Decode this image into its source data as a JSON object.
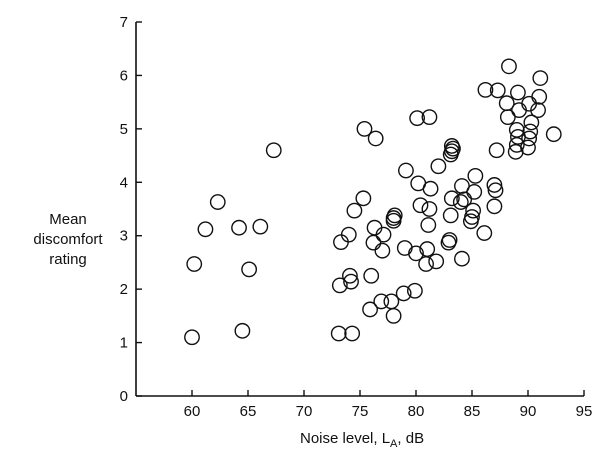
{
  "chart_data": {
    "type": "scatter",
    "title": "",
    "ylabel_lines": [
      "Mean",
      "discomfort",
      "rating"
    ],
    "xlabel": {
      "prefix": "Noise level, L",
      "subscript": "A",
      "suffix": ", dB"
    },
    "xlim": [
      55,
      95
    ],
    "ylim": [
      0,
      7
    ],
    "xticks": [
      60,
      65,
      70,
      75,
      80,
      85,
      90,
      95
    ],
    "yticks": [
      0,
      1,
      2,
      3,
      4,
      5,
      6,
      7
    ],
    "grid": false,
    "legend": "none",
    "marker": "open-circle",
    "points": [
      [
        60.0,
        1.1
      ],
      [
        60.2,
        2.47
      ],
      [
        61.2,
        3.12
      ],
      [
        62.3,
        3.63
      ],
      [
        64.2,
        3.15
      ],
      [
        64.5,
        1.22
      ],
      [
        65.1,
        2.37
      ],
      [
        66.1,
        3.17
      ],
      [
        67.3,
        4.6
      ],
      [
        73.1,
        1.17
      ],
      [
        73.2,
        2.07
      ],
      [
        73.3,
        2.88
      ],
      [
        74.0,
        3.02
      ],
      [
        74.1,
        2.25
      ],
      [
        74.2,
        2.14
      ],
      [
        74.3,
        1.17
      ],
      [
        74.5,
        3.47
      ],
      [
        75.3,
        3.7
      ],
      [
        75.4,
        5.0
      ],
      [
        75.9,
        1.62
      ],
      [
        76.0,
        2.25
      ],
      [
        76.2,
        2.87
      ],
      [
        76.3,
        3.15
      ],
      [
        76.4,
        4.82
      ],
      [
        76.9,
        1.77
      ],
      [
        77.0,
        2.72
      ],
      [
        77.1,
        3.02
      ],
      [
        77.8,
        1.77
      ],
      [
        78.0,
        1.5
      ],
      [
        78.0,
        3.28
      ],
      [
        78.0,
        3.33
      ],
      [
        78.1,
        3.38
      ],
      [
        78.9,
        1.92
      ],
      [
        79.0,
        2.77
      ],
      [
        79.1,
        4.22
      ],
      [
        79.9,
        1.97
      ],
      [
        80.0,
        2.67
      ],
      [
        80.1,
        5.2
      ],
      [
        80.2,
        3.98
      ],
      [
        80.4,
        3.57
      ],
      [
        80.9,
        2.47
      ],
      [
        81.0,
        2.75
      ],
      [
        81.1,
        3.2
      ],
      [
        81.2,
        3.5
      ],
      [
        81.3,
        3.88
      ],
      [
        81.2,
        5.22
      ],
      [
        81.8,
        2.52
      ],
      [
        82.0,
        4.3
      ],
      [
        82.9,
        2.87
      ],
      [
        83.0,
        2.92
      ],
      [
        83.1,
        3.38
      ],
      [
        83.2,
        3.7
      ],
      [
        83.1,
        4.52
      ],
      [
        83.2,
        4.58
      ],
      [
        83.3,
        4.63
      ],
      [
        83.2,
        4.68
      ],
      [
        84.1,
        2.57
      ],
      [
        84.0,
        3.63
      ],
      [
        84.1,
        3.93
      ],
      [
        84.3,
        3.68
      ],
      [
        84.9,
        3.27
      ],
      [
        85.0,
        3.35
      ],
      [
        85.1,
        3.47
      ],
      [
        85.2,
        3.82
      ],
      [
        85.3,
        4.12
      ],
      [
        86.1,
        3.05
      ],
      [
        86.2,
        5.73
      ],
      [
        87.0,
        3.55
      ],
      [
        87.1,
        3.85
      ],
      [
        87.0,
        3.95
      ],
      [
        87.2,
        4.6
      ],
      [
        87.3,
        5.72
      ],
      [
        88.2,
        5.22
      ],
      [
        88.1,
        5.48
      ],
      [
        88.3,
        6.17
      ],
      [
        88.9,
        4.57
      ],
      [
        89.0,
        4.7
      ],
      [
        89.1,
        4.85
      ],
      [
        89.0,
        4.98
      ],
      [
        89.2,
        5.35
      ],
      [
        89.1,
        5.68
      ],
      [
        90.0,
        4.65
      ],
      [
        90.1,
        4.82
      ],
      [
        90.2,
        4.95
      ],
      [
        90.3,
        5.12
      ],
      [
        90.1,
        5.47
      ],
      [
        90.9,
        5.35
      ],
      [
        91.0,
        5.6
      ],
      [
        91.1,
        5.95
      ],
      [
        92.3,
        4.9
      ]
    ]
  }
}
